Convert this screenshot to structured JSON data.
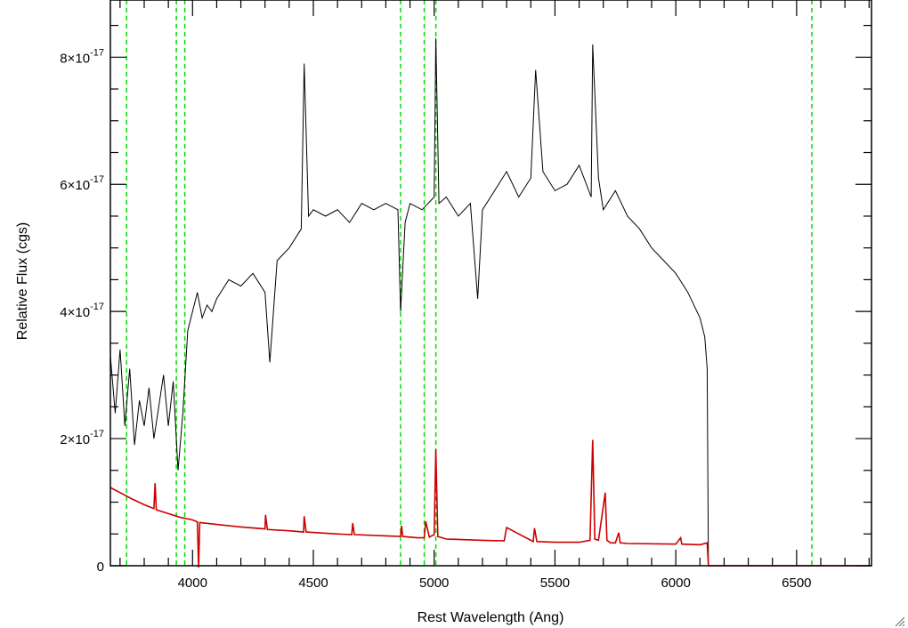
{
  "chart_data": {
    "type": "line",
    "title": "",
    "xlabel": "Rest Wavelength (Ang)",
    "ylabel": "Relative Flux (cgs)",
    "xlim": [
      3660,
      6810
    ],
    "ylim": [
      0,
      8.9e-17
    ],
    "x_ticks": [
      {
        "value": 4000,
        "label": "4000"
      },
      {
        "value": 4500,
        "label": "4500"
      },
      {
        "value": 5000,
        "label": "5000"
      },
      {
        "value": 5500,
        "label": "5500"
      },
      {
        "value": 6000,
        "label": "6000"
      },
      {
        "value": 6500,
        "label": "6500"
      }
    ],
    "y_ticks": [
      {
        "value": 0,
        "mantissa": "0",
        "exponent": ""
      },
      {
        "value": 2e-17,
        "mantissa": "2×10",
        "exponent": "-17"
      },
      {
        "value": 4e-17,
        "mantissa": "4×10",
        "exponent": "-17"
      },
      {
        "value": 6e-17,
        "mantissa": "6×10",
        "exponent": "-17"
      },
      {
        "value": 8e-17,
        "mantissa": "8×10",
        "exponent": "-17"
      }
    ],
    "grid": false,
    "legend": "none",
    "reference_lines_x": [
      3727,
      3933,
      3968,
      4861,
      4959,
      5007,
      6563
    ],
    "series": [
      {
        "color": "#000000",
        "x": [
          3660,
          3680,
          3700,
          3720,
          3740,
          3760,
          3780,
          3800,
          3820,
          3840,
          3860,
          3880,
          3900,
          3920,
          3940,
          3960,
          3980,
          4000,
          4020,
          4040,
          4060,
          4080,
          4100,
          4150,
          4200,
          4250,
          4300,
          4320,
          4350,
          4400,
          4450,
          4462,
          4480,
          4500,
          4550,
          4600,
          4650,
          4700,
          4750,
          4800,
          4850,
          4861,
          4880,
          4900,
          4950,
          5000,
          5007,
          5020,
          5050,
          5100,
          5150,
          5180,
          5200,
          5250,
          5300,
          5350,
          5400,
          5420,
          5450,
          5500,
          5550,
          5600,
          5650,
          5656,
          5680,
          5700,
          5750,
          5800,
          5850,
          5900,
          5950,
          6000,
          6050,
          6100,
          6120,
          6130,
          6135
        ],
        "values": [
          3.3e-17,
          2.4e-17,
          3.4e-17,
          2.2e-17,
          3.1e-17,
          1.9e-17,
          2.6e-17,
          2.2e-17,
          2.8e-17,
          2e-17,
          2.5e-17,
          3e-17,
          2.2e-17,
          2.9e-17,
          1.5e-17,
          2.4e-17,
          3.7e-17,
          4e-17,
          4.3e-17,
          3.9e-17,
          4.1e-17,
          4e-17,
          4.2e-17,
          4.5e-17,
          4.4e-17,
          4.6e-17,
          4.3e-17,
          3.2e-17,
          4.8e-17,
          5e-17,
          5.3e-17,
          7.9e-17,
          5.5e-17,
          5.6e-17,
          5.5e-17,
          5.6e-17,
          5.4e-17,
          5.7e-17,
          5.6e-17,
          5.7e-17,
          5.6e-17,
          4e-17,
          5.4e-17,
          5.7e-17,
          5.6e-17,
          5.8e-17,
          8.3e-17,
          5.7e-17,
          5.8e-17,
          5.5e-17,
          5.7e-17,
          4.2e-17,
          5.6e-17,
          5.9e-17,
          6.2e-17,
          5.8e-17,
          6.1e-17,
          7.8e-17,
          6.2e-17,
          5.9e-17,
          6e-17,
          6.3e-17,
          5.8e-17,
          8.2e-17,
          6.1e-17,
          5.6e-17,
          5.9e-17,
          5.5e-17,
          5.3e-17,
          5e-17,
          4.8e-17,
          4.6e-17,
          4.3e-17,
          3.9e-17,
          3.6e-17,
          3.1e-17,
          0
        ]
      },
      {
        "color": "#cc0000",
        "x": [
          3660,
          3700,
          3750,
          3800,
          3840,
          3845,
          3850,
          3900,
          3950,
          4000,
          4020,
          4025,
          4030,
          4100,
          4200,
          4300,
          4302,
          4310,
          4400,
          4460,
          4462,
          4470,
          4600,
          4659,
          4663,
          4670,
          4800,
          4861,
          4865,
          4870,
          4930,
          4959,
          4965,
          4980,
          5000,
          5007,
          5015,
          5050,
          5200,
          5290,
          5300,
          5410,
          5415,
          5425,
          5500,
          5600,
          5645,
          5656,
          5665,
          5680,
          5708,
          5715,
          5730,
          5750,
          5764,
          5770,
          5800,
          6000,
          6020,
          6025,
          6100,
          6130,
          6135,
          6300,
          6500,
          6810
        ],
        "values": [
          1.23e-17,
          1.15e-17,
          1.05e-17,
          9.6e-18,
          9e-18,
          1.3e-17,
          8.8e-18,
          8.2e-18,
          7.6e-18,
          7.2e-18,
          6.9e-18,
          -2e-18,
          6.8e-18,
          6.5e-18,
          6.1e-18,
          5.8e-18,
          8e-18,
          5.7e-18,
          5.5e-18,
          5.3e-18,
          7.8e-18,
          5.3e-18,
          5e-18,
          4.9e-18,
          6.7e-18,
          4.9e-18,
          4.7e-18,
          4.6e-18,
          6.3e-18,
          4.6e-18,
          4.4e-18,
          4.4e-18,
          7e-18,
          4.5e-18,
          4.9e-18,
          1.83e-17,
          4.6e-18,
          4.2e-18,
          4e-18,
          3.9e-18,
          6e-18,
          3.8e-18,
          5.9e-18,
          3.8e-18,
          3.7e-18,
          3.7e-18,
          4e-18,
          1.98e-17,
          4.2e-18,
          4e-18,
          1.15e-17,
          4e-18,
          3.6e-18,
          3.6e-18,
          5.2e-18,
          3.6e-18,
          3.5e-18,
          3.4e-18,
          4.4e-18,
          3.4e-18,
          3.3e-18,
          3.6e-18,
          0,
          0,
          0,
          0
        ]
      }
    ],
    "colors": {
      "reference_line": "#00dd00",
      "axes": "#000000"
    }
  }
}
